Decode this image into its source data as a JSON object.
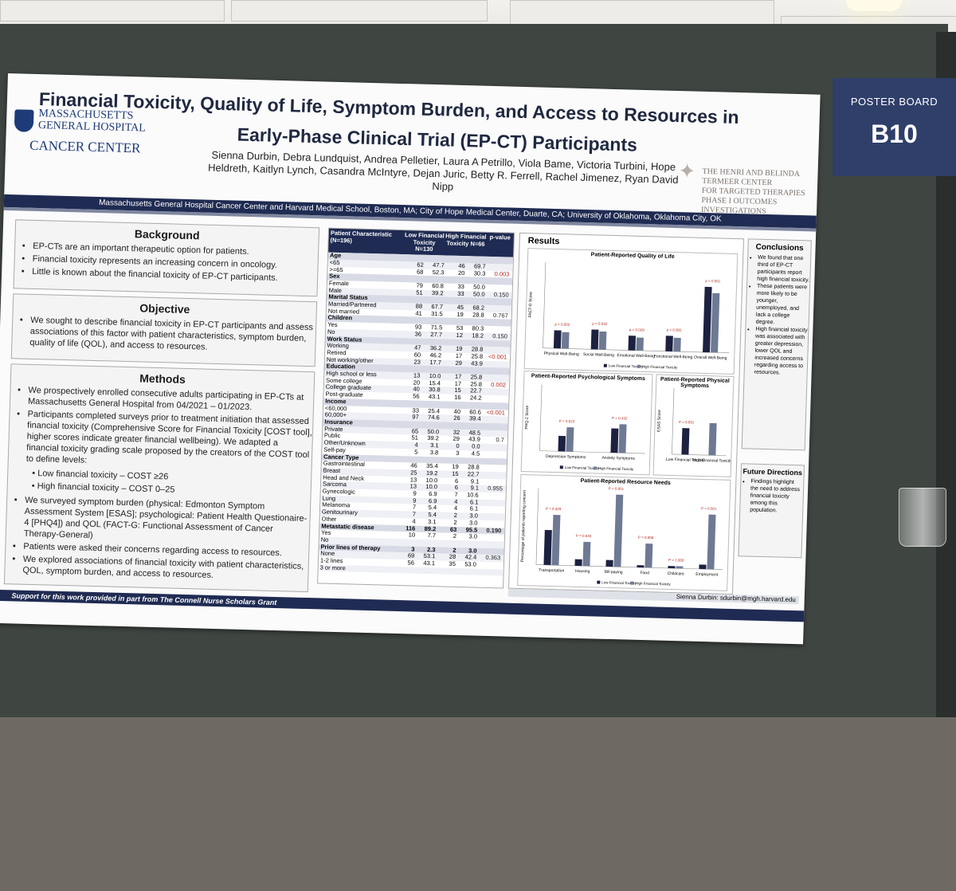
{
  "sign": {
    "line1": "POSTER BOARD",
    "line2": "B10"
  },
  "title": {
    "line1": "Financial Toxicity, Quality of Life, Symptom Burden, and Access to Resources in",
    "line2": "Early-Phase Clinical Trial (EP-CT) Participants"
  },
  "logo_mgh": {
    "l1": "MASSACHUSETTS",
    "l2": "GENERAL HOSPITAL",
    "l3": "CANCER CENTER"
  },
  "logo_termeer": {
    "l1": "THE HENRI AND BELINDA TERMEER CENTER",
    "l2": "FOR TARGETED THERAPIES",
    "l3": "PHASE I  OUTCOMES INVESTIGATIONS"
  },
  "authors": "Sienna Durbin, Debra Lundquist, Andrea Pelletier, Laura A Petrillo, Viola Bame, Victoria Turbini, Hope Heldreth, Kaitlyn Lynch, Casandra McIntyre, Dejan Juric, Betty R. Ferrell, Rachel Jimenez, Ryan David Nipp",
  "affiliation": "Massachusetts General Hospital Cancer Center and Harvard Medical School, Boston, MA; City of Hope Medical Center, Duarte, CA; University of Oklahoma, Oklahoma City, OK",
  "background": {
    "heading": "Background",
    "items": [
      "EP-CTs are an important therapeutic option for patients.",
      "Financial toxicity represents an increasing concern in oncology.",
      "Little is known about the financial toxicity of EP-CT participants."
    ]
  },
  "objective": {
    "heading": "Objective",
    "text": "We sought to describe financial toxicity in EP-CT participants and assess associations of this factor with patient characteristics, symptom burden, quality of life (QOL), and access to resources."
  },
  "methods": {
    "heading": "Methods",
    "items": [
      "We prospectively enrolled consecutive adults participating in EP-CTs at Massachusetts General Hospital from 04/2021 – 01/2023.",
      "Participants completed surveys prior to treatment initiation that assessed financial toxicity (Comprehensive Score for Financial Toxicity [COST tool], higher scores indicate greater financial wellbeing). We adapted a financial toxicity grading scale proposed by the creators of the COST tool to define levels:"
    ],
    "levels": [
      "Low financial toxicity – COST ≥26",
      "High financial toxicity – COST 0–25"
    ],
    "items2": [
      "We surveyed symptom burden (physical: Edmonton Symptom Assessment System [ESAS]; psychological: Patient Health Questionaire-4 [PHQ4]) and QOL (FACT-G: Functional Assessment of Cancer Therapy-General)",
      "Patients were asked their concerns regarding access to resources.",
      "We explored associations of financial toxicity with patient characteristics, QOL, symptom burden, and access to resources."
    ]
  },
  "table": {
    "headers": [
      "Patient Characteristic (N=196)",
      "Low Financial Toxicity N=130",
      "%",
      "High Financial Toxicity N=66",
      "%",
      "p-value"
    ],
    "rows": [
      {
        "t": "cat",
        "c": [
          "Age",
          "",
          "",
          "",
          "",
          ""
        ]
      },
      {
        "t": "r",
        "c": [
          "<65",
          "62",
          "47.7",
          "46",
          "69.7",
          ""
        ]
      },
      {
        "t": "r",
        "c": [
          ">=65",
          "68",
          "52.3",
          "20",
          "30.3",
          "0.003"
        ]
      },
      {
        "t": "cat",
        "c": [
          "Sex",
          "",
          "",
          "",
          "",
          ""
        ]
      },
      {
        "t": "r",
        "c": [
          "Female",
          "79",
          "60.8",
          "33",
          "50.0",
          ""
        ]
      },
      {
        "t": "r",
        "c": [
          "Male",
          "51",
          "39.2",
          "33",
          "50.0",
          "0.150"
        ]
      },
      {
        "t": "cat",
        "c": [
          "Marital Status",
          "",
          "",
          "",
          "",
          ""
        ]
      },
      {
        "t": "r",
        "c": [
          "Married/Partnered",
          "88",
          "67.7",
          "45",
          "68.2",
          ""
        ]
      },
      {
        "t": "r",
        "c": [
          "Not married",
          "41",
          "31.5",
          "19",
          "28.8",
          "0.767"
        ]
      },
      {
        "t": "cat",
        "c": [
          "Children",
          "",
          "",
          "",
          "",
          ""
        ]
      },
      {
        "t": "r",
        "c": [
          "Yes",
          "93",
          "71.5",
          "53",
          "80.3",
          ""
        ]
      },
      {
        "t": "r",
        "c": [
          "No",
          "36",
          "27.7",
          "12",
          "18.2",
          "0.150"
        ]
      },
      {
        "t": "cat",
        "c": [
          "Work Status",
          "",
          "",
          "",
          "",
          ""
        ]
      },
      {
        "t": "r",
        "c": [
          "Working",
          "47",
          "36.2",
          "19",
          "28.8",
          ""
        ]
      },
      {
        "t": "r",
        "c": [
          "Retired",
          "60",
          "46.2",
          "17",
          "25.8",
          "<0.001"
        ]
      },
      {
        "t": "r",
        "c": [
          "Not working/other",
          "23",
          "17.7",
          "29",
          "43.9",
          ""
        ]
      },
      {
        "t": "cat",
        "c": [
          "Education",
          "",
          "",
          "",
          "",
          ""
        ]
      },
      {
        "t": "r",
        "c": [
          "High school or less",
          "13",
          "10.0",
          "17",
          "25.8",
          ""
        ]
      },
      {
        "t": "r",
        "c": [
          "Some college",
          "20",
          "15.4",
          "17",
          "25.8",
          "0.002"
        ]
      },
      {
        "t": "r",
        "c": [
          "College graduate",
          "40",
          "30.8",
          "15",
          "22.7",
          ""
        ]
      },
      {
        "t": "r",
        "c": [
          "Post-graduate",
          "56",
          "43.1",
          "16",
          "24.2",
          ""
        ]
      },
      {
        "t": "cat",
        "c": [
          "Income",
          "",
          "",
          "",
          "",
          ""
        ]
      },
      {
        "t": "r",
        "c": [
          "<60,000",
          "33",
          "25.4",
          "40",
          "60.6",
          "<0.001"
        ]
      },
      {
        "t": "r",
        "c": [
          "60,000+",
          "97",
          "74.6",
          "26",
          "39.4",
          ""
        ]
      },
      {
        "t": "cat",
        "c": [
          "Insurance",
          "",
          "",
          "",
          "",
          ""
        ]
      },
      {
        "t": "r",
        "c": [
          "Private",
          "65",
          "50.0",
          "32",
          "48.5",
          ""
        ]
      },
      {
        "t": "r",
        "c": [
          "Public",
          "51",
          "39.2",
          "29",
          "43.9",
          "0.7"
        ]
      },
      {
        "t": "r",
        "c": [
          "Other/Unknown",
          "4",
          "3.1",
          "0",
          "0.0",
          ""
        ]
      },
      {
        "t": "r",
        "c": [
          "Self-pay",
          "5",
          "3.8",
          "3",
          "4.5",
          ""
        ]
      },
      {
        "t": "cat",
        "c": [
          "Cancer Type",
          "",
          "",
          "",
          "",
          ""
        ]
      },
      {
        "t": "r",
        "c": [
          "Gastrointestinal",
          "46",
          "35.4",
          "19",
          "28.8",
          ""
        ]
      },
      {
        "t": "r",
        "c": [
          "Breast",
          "25",
          "19.2",
          "15",
          "22.7",
          ""
        ]
      },
      {
        "t": "r",
        "c": [
          "Head and Neck",
          "13",
          "10.0",
          "6",
          "9.1",
          ""
        ]
      },
      {
        "t": "r",
        "c": [
          "Sarcoma",
          "13",
          "10.0",
          "6",
          "9.1",
          "0.955"
        ]
      },
      {
        "t": "r",
        "c": [
          "Gynecologic",
          "9",
          "6.9",
          "7",
          "10.6",
          ""
        ]
      },
      {
        "t": "r",
        "c": [
          "Lung",
          "9",
          "6.9",
          "4",
          "6.1",
          ""
        ]
      },
      {
        "t": "r",
        "c": [
          "Melanoma",
          "7",
          "5.4",
          "4",
          "6.1",
          ""
        ]
      },
      {
        "t": "r",
        "c": [
          "Genitourinary",
          "7",
          "5.4",
          "2",
          "3.0",
          ""
        ]
      },
      {
        "t": "r",
        "c": [
          "Other",
          "4",
          "3.1",
          "2",
          "3.0",
          ""
        ]
      },
      {
        "t": "cat",
        "c": [
          "Metastatic disease",
          "116",
          "89.2",
          "63",
          "95.5",
          "0.190"
        ]
      },
      {
        "t": "r",
        "c": [
          "Yes",
          "10",
          "7.7",
          "2",
          "3.0",
          ""
        ]
      },
      {
        "t": "r",
        "c": [
          "No",
          "",
          "",
          "",
          "",
          ""
        ]
      },
      {
        "t": "cat",
        "c": [
          "Prior lines of therapy",
          "3",
          "2.3",
          "2",
          "3.0",
          ""
        ]
      },
      {
        "t": "r",
        "c": [
          "None",
          "69",
          "53.1",
          "28",
          "42.4",
          "0.363"
        ]
      },
      {
        "t": "r",
        "c": [
          "1-2 lines",
          "56",
          "43.1",
          "35",
          "53.0",
          ""
        ]
      },
      {
        "t": "r",
        "c": [
          "3 or more",
          "",
          "",
          "",
          "",
          ""
        ]
      }
    ]
  },
  "results": {
    "heading": "Results"
  },
  "chart_data": [
    {
      "type": "bar",
      "title": "Patient-Reported Quality of Life",
      "ylabel": "FACT-G Score",
      "ylim": [
        0,
        100
      ],
      "categories": [
        "Physical Well-Being",
        "Social Well-Being",
        "Emotional Well-Being",
        "Functional Well-Being",
        "Overall Well-Being"
      ],
      "series": [
        {
          "name": "Low Financial Toxicity",
          "values": [
            21,
            23,
            17,
            18,
            76
          ]
        },
        {
          "name": "High Financial Toxicity",
          "values": [
            19,
            21,
            15,
            16,
            69
          ]
        }
      ],
      "annotations": [
        "p = 0.002",
        "p = 0.032",
        "p = 0.029",
        "p = 0.002",
        "p < 0.001"
      ]
    },
    {
      "type": "bar",
      "title": "Patient-Reported Psychological Symptoms",
      "ylabel": "PHQ-2 Score",
      "ylim": [
        0,
        3
      ],
      "categories": [
        "Depression Symptoms",
        "Anxiety Symptoms"
      ],
      "series": [
        {
          "name": "Low Financial Toxicity",
          "values": [
            0.7,
            1.1
          ]
        },
        {
          "name": "High Financial Toxicity",
          "values": [
            1.1,
            1.3
          ]
        }
      ],
      "annotations": [
        "P = 0.023",
        "P = 0.432"
      ]
    },
    {
      "type": "bar",
      "title": "Patient-Reported Physical Symptoms",
      "ylabel": "ESAS Score",
      "ylim": [
        0,
        35
      ],
      "categories": [
        "Low Financial Toxicity",
        "High Financial Toxicity"
      ],
      "series": [
        {
          "name": "",
          "values": [
            14,
            17
          ]
        }
      ],
      "annotations": [
        "P = 0.091"
      ]
    },
    {
      "type": "bar",
      "title": "Patient-Reported Resource Needs",
      "ylabel": "Percentage of patients reporting concern",
      "ylim": [
        0,
        35
      ],
      "categories": [
        "Transportation",
        "Housing",
        "Bill paying",
        "Food",
        "Childcare",
        "Employment"
      ],
      "series": [
        {
          "name": "Low Financial Toxicity",
          "values": [
            16,
            3,
            3,
            1,
            1,
            2
          ]
        },
        {
          "name": "High Financial Toxicity",
          "values": [
            23,
            11,
            33,
            11,
            1,
            25
          ]
        }
      ],
      "annotations": [
        "P = 0.329",
        "P = 0.033",
        "P < 0.001",
        "P = 0.006",
        "P = 1.000",
        "P < 0.001"
      ]
    }
  ],
  "conclusions": {
    "heading": "Conclusions",
    "items": [
      "We found that one third of EP-CT participants report high financial toxicity.",
      "These patients were more likely to be younger, unemployed, and lack a college degree.",
      "High financial toxicity was associated with greater depression, lower QOL and increased concerns regarding access to resources."
    ]
  },
  "future": {
    "heading": "Future Directions",
    "items": [
      "Findings highlight the need to address financial toxicity among this population."
    ]
  },
  "contact": "Sienna Durbin: sdurbin@mgh.harvard.edu",
  "footer": "Support for this work provided in part from The Connell Nurse Scholars Grant",
  "colors": {
    "navy": "#1f2b52",
    "low": "#1c2140",
    "high": "#6e7a93",
    "pval": "#b3261e"
  }
}
